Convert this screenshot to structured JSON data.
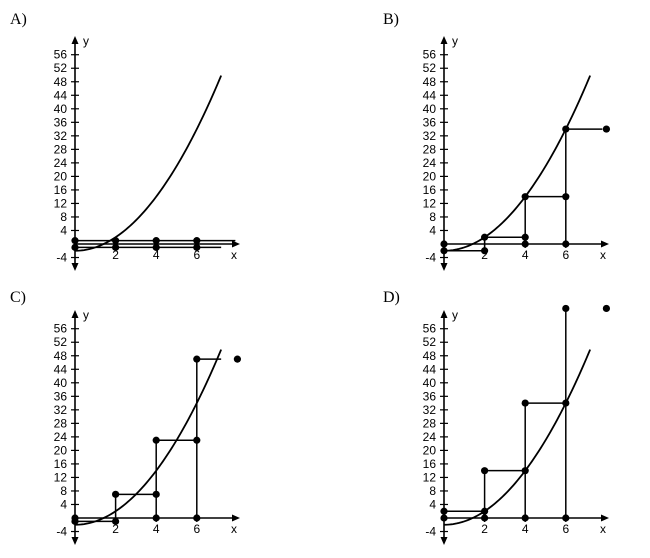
{
  "chart_data": [
    {
      "panel_label": "A)",
      "type": "line",
      "xlabel": "x",
      "ylabel": "y",
      "x_ticks": [
        2,
        4,
        6
      ],
      "y_ticks": [
        -4,
        4,
        8,
        12,
        16,
        20,
        24,
        28,
        32,
        36,
        40,
        44,
        48,
        52,
        56
      ],
      "curve": {
        "function": "x^2 - 2",
        "x_range": [
          0,
          7.2
        ]
      },
      "step_segments": [
        {
          "x1": 0,
          "y1": 1,
          "x2": 2,
          "y2": 1
        },
        {
          "x1": 2,
          "y1": 1,
          "x2": 4,
          "y2": 1
        },
        {
          "x1": 4,
          "y1": 1,
          "x2": 6,
          "y2": 1
        },
        {
          "x1": 6,
          "y1": 1,
          "x2": 7.9,
          "y2": 1
        },
        {
          "x1": 0,
          "y1": -1,
          "x2": 7.2,
          "y2": -1
        }
      ],
      "points": [
        {
          "x": 0,
          "y": 1
        },
        {
          "x": 2,
          "y": 1
        },
        {
          "x": 4,
          "y": 1
        },
        {
          "x": 6,
          "y": 1
        },
        {
          "x": 0,
          "y": -1
        },
        {
          "x": 2,
          "y": -1
        },
        {
          "x": 4,
          "y": -1
        },
        {
          "x": 6,
          "y": -1
        }
      ]
    },
    {
      "panel_label": "B)",
      "type": "line",
      "xlabel": "x",
      "ylabel": "y",
      "x_ticks": [
        2,
        4,
        6
      ],
      "y_ticks": [
        -4,
        4,
        8,
        12,
        16,
        20,
        24,
        28,
        32,
        36,
        40,
        44,
        48,
        52,
        56
      ],
      "curve": {
        "function": "x^2 - 2",
        "x_range": [
          0,
          7.2
        ]
      },
      "step_segments": [
        {
          "x1": 0,
          "y1": -2,
          "x2": 2,
          "y2": -2
        },
        {
          "x1": 2,
          "y1": 2,
          "x2": 4,
          "y2": 2
        },
        {
          "x1": 4,
          "y1": 14,
          "x2": 6,
          "y2": 14
        },
        {
          "x1": 6,
          "y1": 34,
          "x2": 7.8,
          "y2": 34
        },
        {
          "x1": 2,
          "y1": -2,
          "x2": 2,
          "y2": 2
        },
        {
          "x1": 4,
          "y1": 0,
          "x2": 4,
          "y2": 14
        },
        {
          "x1": 6,
          "y1": 0,
          "x2": 6,
          "y2": 34
        }
      ],
      "points": [
        {
          "x": 0,
          "y": -2
        },
        {
          "x": 0,
          "y": 0
        },
        {
          "x": 2,
          "y": -2
        },
        {
          "x": 2,
          "y": 2
        },
        {
          "x": 4,
          "y": 0
        },
        {
          "x": 4,
          "y": 2
        },
        {
          "x": 4,
          "y": 14
        },
        {
          "x": 6,
          "y": 0
        },
        {
          "x": 6,
          "y": 14
        },
        {
          "x": 6,
          "y": 34
        },
        {
          "x": 8,
          "y": 34
        }
      ]
    },
    {
      "panel_label": "C)",
      "type": "line",
      "xlabel": "x",
      "ylabel": "y",
      "x_ticks": [
        2,
        4,
        6
      ],
      "y_ticks": [
        -4,
        4,
        8,
        12,
        16,
        20,
        24,
        28,
        32,
        36,
        40,
        44,
        48,
        52,
        56
      ],
      "curve": {
        "function": "x^2 - 2",
        "x_range": [
          0,
          7.2
        ]
      },
      "step_segments": [
        {
          "x1": 0,
          "y1": -1,
          "x2": 2,
          "y2": -1
        },
        {
          "x1": 2,
          "y1": 7,
          "x2": 4,
          "y2": 7
        },
        {
          "x1": 4,
          "y1": 23,
          "x2": 6,
          "y2": 23
        },
        {
          "x1": 6,
          "y1": 47,
          "x2": 7.2,
          "y2": 47
        },
        {
          "x1": 2,
          "y1": -1,
          "x2": 2,
          "y2": 7
        },
        {
          "x1": 4,
          "y1": 0,
          "x2": 4,
          "y2": 23
        },
        {
          "x1": 6,
          "y1": 0,
          "x2": 6,
          "y2": 47
        }
      ],
      "points": [
        {
          "x": 0,
          "y": 0
        },
        {
          "x": 0,
          "y": -1
        },
        {
          "x": 2,
          "y": -1
        },
        {
          "x": 2,
          "y": 7
        },
        {
          "x": 4,
          "y": 0
        },
        {
          "x": 4,
          "y": 7
        },
        {
          "x": 4,
          "y": 23
        },
        {
          "x": 6,
          "y": 0
        },
        {
          "x": 6,
          "y": 23
        },
        {
          "x": 6,
          "y": 47
        },
        {
          "x": 8,
          "y": 47
        }
      ]
    },
    {
      "panel_label": "D)",
      "type": "line",
      "xlabel": "x",
      "ylabel": "y",
      "x_ticks": [
        2,
        4,
        6
      ],
      "y_ticks": [
        -4,
        4,
        8,
        12,
        16,
        20,
        24,
        28,
        32,
        36,
        40,
        44,
        48,
        52,
        56
      ],
      "curve": {
        "function": "x^2 - 2",
        "x_range": [
          0,
          7.2
        ]
      },
      "step_segments": [
        {
          "x1": 0,
          "y1": 2,
          "x2": 2,
          "y2": 2
        },
        {
          "x1": 2,
          "y1": 14,
          "x2": 4,
          "y2": 14
        },
        {
          "x1": 4,
          "y1": 34,
          "x2": 6,
          "y2": 34
        },
        {
          "x1": 2,
          "y1": 0,
          "x2": 2,
          "y2": 14
        },
        {
          "x1": 4,
          "y1": 0,
          "x2": 4,
          "y2": 34
        },
        {
          "x1": 6,
          "y1": 0,
          "x2": 6,
          "y2": 62
        }
      ],
      "points": [
        {
          "x": 0,
          "y": 0
        },
        {
          "x": 0,
          "y": 2
        },
        {
          "x": 2,
          "y": 0
        },
        {
          "x": 2,
          "y": 2
        },
        {
          "x": 2,
          "y": 14
        },
        {
          "x": 4,
          "y": 0
        },
        {
          "x": 4,
          "y": 14
        },
        {
          "x": 4,
          "y": 34
        },
        {
          "x": 6,
          "y": 0
        },
        {
          "x": 6,
          "y": 34
        },
        {
          "x": 6,
          "y": 62
        },
        {
          "x": 8,
          "y": 62
        }
      ]
    }
  ]
}
